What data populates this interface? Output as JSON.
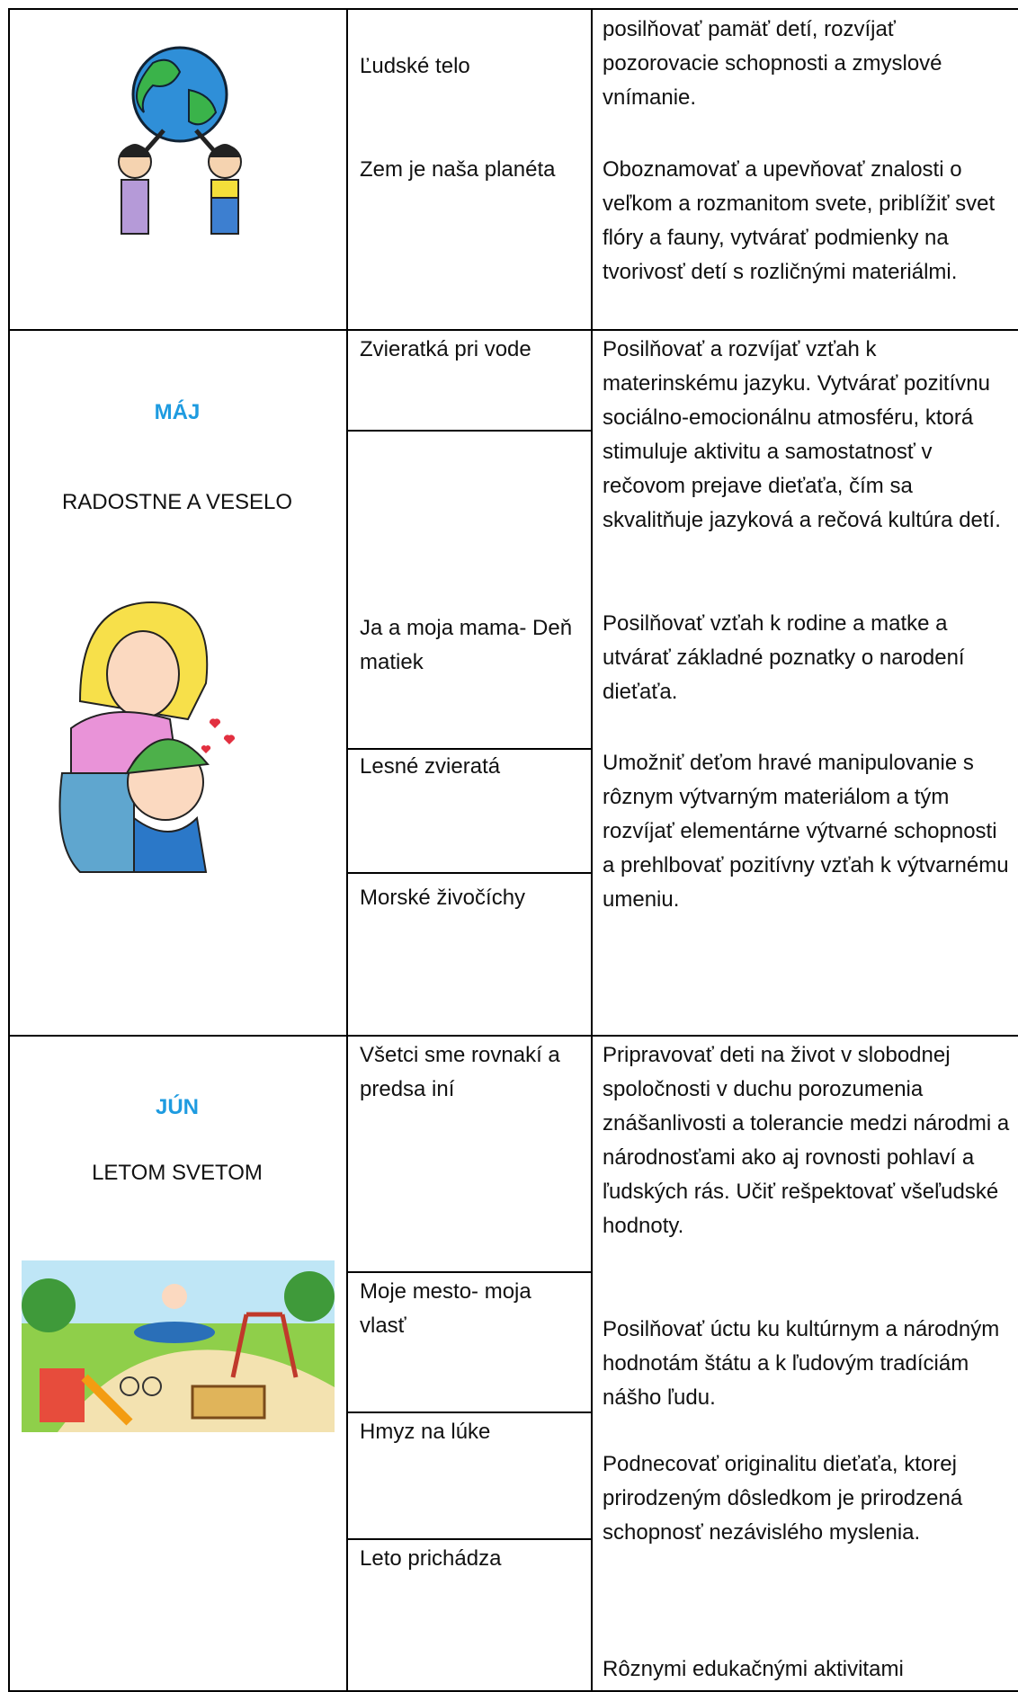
{
  "table": {
    "rows": [
      {
        "topics": [
          "Ľudské telo",
          "Zem je naša planéta"
        ],
        "goals": [
          "posilňovať pamäť detí, rozvíjať pozorovacie schopnosti a zmyslové vnímanie.",
          "Oboznamovať a upevňovať znalosti o veľkom a rozmanitom svete, priblížiť svet flóry a fauny, vytvárať podmienky na tvorivosť detí s rozličnými materiálmi."
        ]
      },
      {
        "month": "MÁJ",
        "theme": "RADOSTNE A VESELO",
        "topics": [
          "Zvieratká pri vode",
          "Ja a moja mama- Deň matiek",
          "Lesné zvieratá",
          "Morské živočíchy"
        ],
        "goals": [
          "Posilňovať a rozvíjať vzťah k materinskému jazyku. Vytvárať pozitívnu sociálno-emocionálnu atmosféru, ktorá stimuluje aktivitu a samostatnosť v rečovom prejave dieťaťa, čím sa skvalitňuje jazyková a rečová kultúra detí.",
          "Posilňovať vzťah k rodine a matke a utvárať základné poznatky o narodení dieťaťa.",
          "Umožniť deťom hravé manipulovanie s rôznym výtvarným materiálom a tým rozvíjať elementárne výtvarné schopnosti a prehlbovať pozitívny vzťah k výtvarnému umeniu."
        ]
      },
      {
        "month": "JÚN",
        "theme": "LETOM SVETOM",
        "topics": [
          "Všetci sme rovnakí a predsa iní",
          "Moje mesto- moja vlasť",
          "Hmyz na lúke",
          "Leto prichádza"
        ],
        "goals": [
          "Pripravovať deti na život v slobodnej spoločnosti v duchu porozumenia znášanlivosti a tolerancie medzi národmi a národnosťami ako aj rovnosti pohlaví a ľudských rás. Učiť rešpektovať všeľudské hodnoty.",
          "Posilňovať úctu ku kultúrnym a národným hodnotám štátu a k ľudovým tradíciám nášho ľudu.",
          "Podnecovať originalitu dieťaťa, ktorej prirodzeným dôsledkom je prirodzená schopnosť nezávislého myslenia.",
          "Rôznymi edukačnými aktivitami"
        ]
      }
    ]
  }
}
